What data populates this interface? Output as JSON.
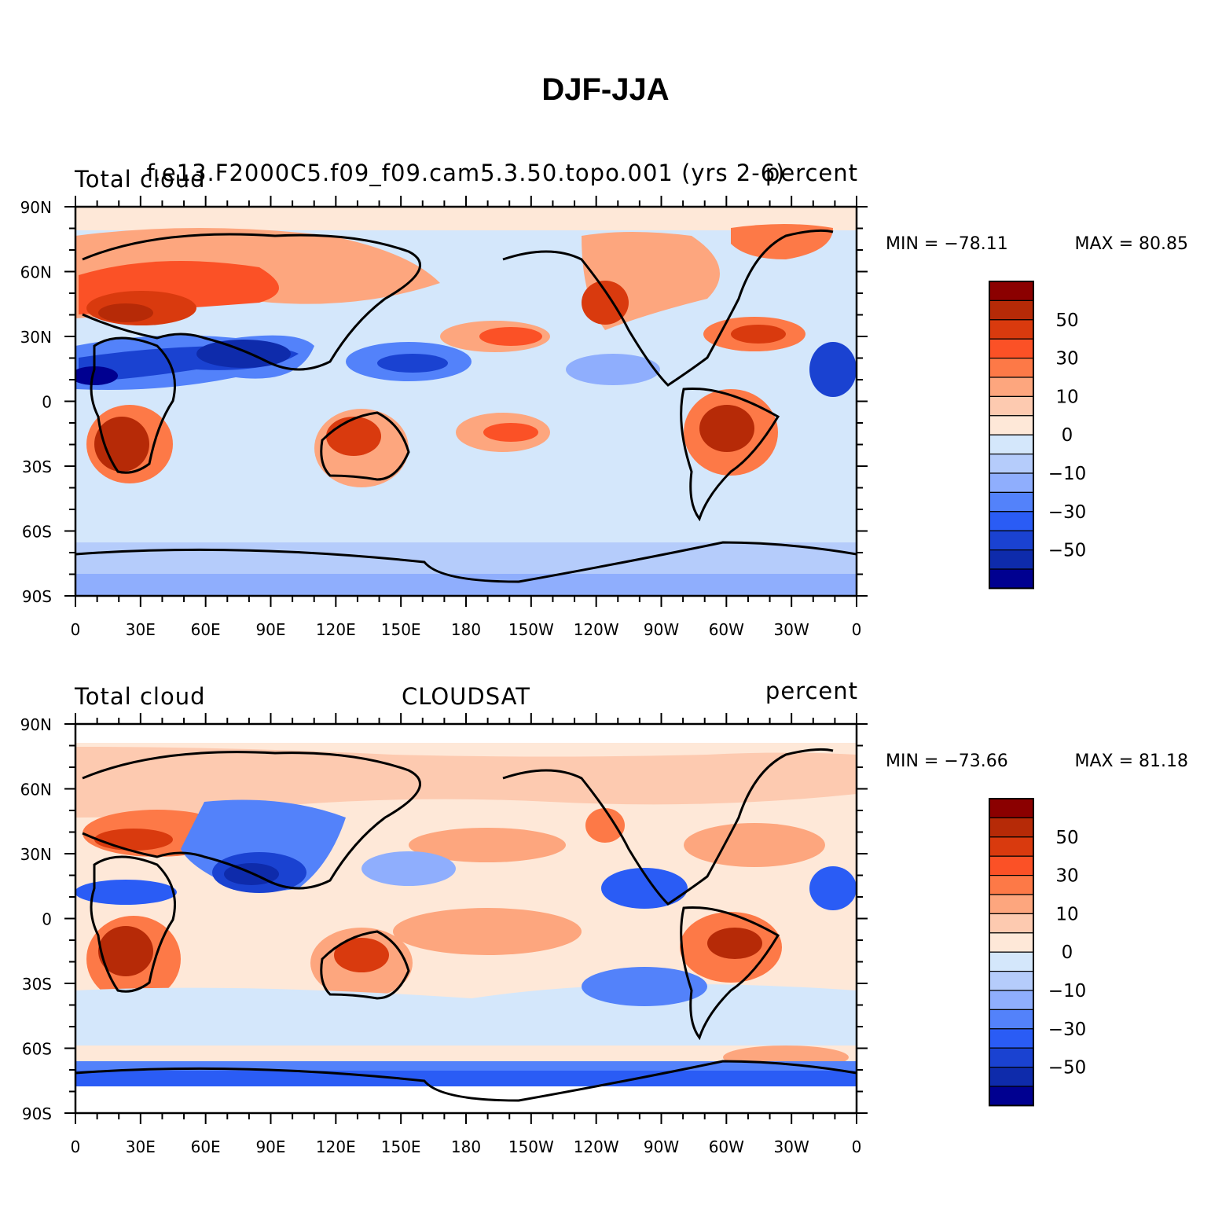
{
  "title": "DJF-JJA",
  "colors": {
    "levels": [
      "#8b0000",
      "#b62a07",
      "#d93a0e",
      "#fb5126",
      "#fd7947",
      "#fda67e",
      "#fdcab0",
      "#fee8d8",
      "#d4e7fb",
      "#b5ccfb",
      "#8faefd",
      "#5382fa",
      "#2a5cf5",
      "#1a42d1",
      "#0e2bab",
      "#000090"
    ],
    "land_outline": "#000000"
  },
  "colorbar_labels": [
    "50",
    "30",
    "10",
    "0",
    "−10",
    "−30",
    "−50"
  ],
  "x_ticks": [
    "0",
    "30E",
    "60E",
    "90E",
    "120E",
    "150E",
    "180",
    "150W",
    "120W",
    "90W",
    "60W",
    "30W",
    "0"
  ],
  "y_ticks": [
    "90N",
    "60N",
    "30N",
    "0",
    "30S",
    "60S",
    "90S"
  ],
  "panels": [
    {
      "left_title": "Total cloud",
      "center_title": "f.e13.F2000C5.f09_f09.cam5.3.50.topo.001 (yrs 2-6)",
      "right_title": "percent",
      "min_text": "MIN = −78.11",
      "max_text": "MAX =  80.85"
    },
    {
      "left_title": "Total cloud",
      "center_title": "CLOUDSAT",
      "right_title": "percent",
      "min_text": "MIN = −73.66",
      "max_text": "MAX =  81.18"
    }
  ]
}
